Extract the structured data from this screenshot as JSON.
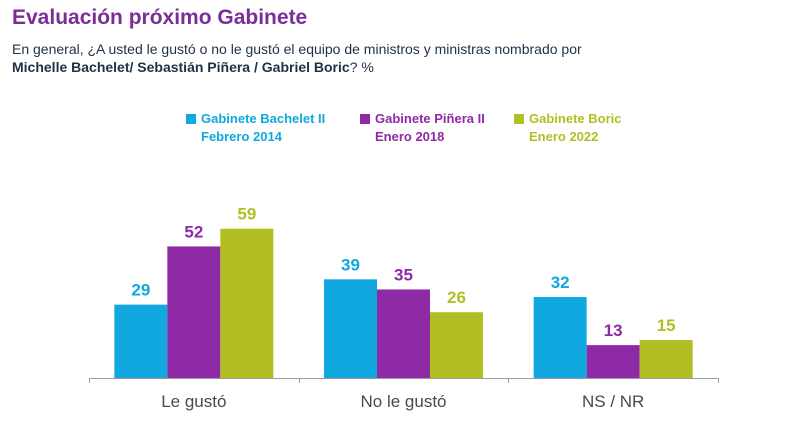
{
  "title": "Evaluación próximo Gabinete",
  "subtitle_prefix": "En general, ¿A usted le gustó o no le gustó el equipo de ministros y ministras nombrado por",
  "subtitle_bold": "Michelle Bachelet/ Sebastián Piñera / Gabriel Boric",
  "subtitle_suffix": "? %",
  "chart_data": {
    "type": "bar",
    "categories": [
      "Le gustó",
      "No le gustó",
      "NS / NR"
    ],
    "series": [
      {
        "name": "Gabinete Bachelet II\nFebrero 2014",
        "values": [
          29,
          39,
          32
        ],
        "color": "#10a8de"
      },
      {
        "name": "Gabinete Piñera II\nEnero 2018",
        "values": [
          52,
          35,
          13
        ],
        "color": "#8e2aa6"
      },
      {
        "name": "Gabinete Boric\nEnero 2022",
        "values": [
          59,
          26,
          15
        ],
        "color": "#b1bf22"
      }
    ],
    "ylim": [
      0,
      60
    ],
    "legend": "top",
    "grid": false
  }
}
